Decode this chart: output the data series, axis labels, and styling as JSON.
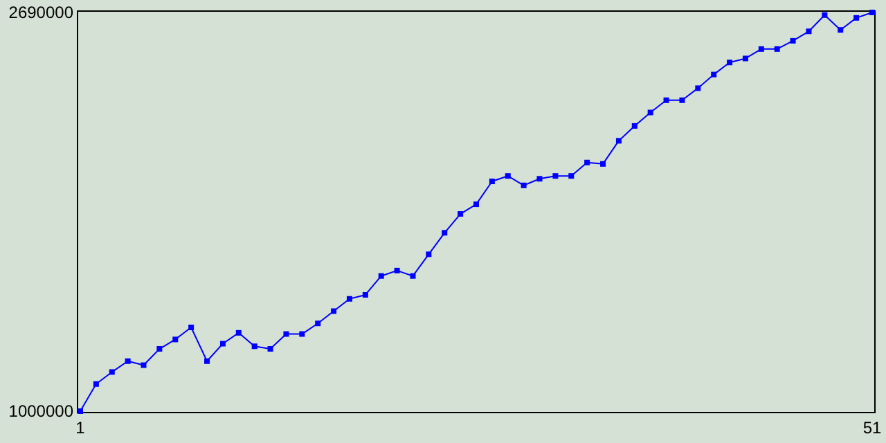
{
  "chart_data": {
    "type": "line",
    "x": [
      1,
      2,
      3,
      4,
      5,
      6,
      7,
      8,
      9,
      10,
      11,
      12,
      13,
      14,
      15,
      16,
      17,
      18,
      19,
      20,
      21,
      22,
      23,
      24,
      25,
      26,
      27,
      28,
      29,
      30,
      31,
      32,
      33,
      34,
      35,
      36,
      37,
      38,
      39,
      40,
      41,
      42,
      43,
      44,
      45,
      46,
      47,
      48,
      49,
      50,
      51
    ],
    "series": [
      {
        "color": "#0000ff",
        "values": [
          1000000,
          1115000,
          1166000,
          1212000,
          1195000,
          1264000,
          1304000,
          1355000,
          1212000,
          1286000,
          1332000,
          1275000,
          1264000,
          1327000,
          1327000,
          1372000,
          1424000,
          1476000,
          1493000,
          1573000,
          1596000,
          1573000,
          1665000,
          1756000,
          1836000,
          1877000,
          1974000,
          1997000,
          1957000,
          1985000,
          1997000,
          1997000,
          2054000,
          2048000,
          2146000,
          2209000,
          2266000,
          2318000,
          2318000,
          2369000,
          2427000,
          2478000,
          2495000,
          2535000,
          2535000,
          2570000,
          2610000,
          2679000,
          2616000,
          2667000,
          2690000
        ]
      }
    ],
    "xlim": [
      1,
      51
    ],
    "xticks": [
      1,
      51
    ],
    "ylim": [
      1000000,
      2690000
    ],
    "yticks": [
      1000000,
      2690000
    ],
    "grid": false,
    "marker": "square",
    "line_style": "solid"
  }
}
